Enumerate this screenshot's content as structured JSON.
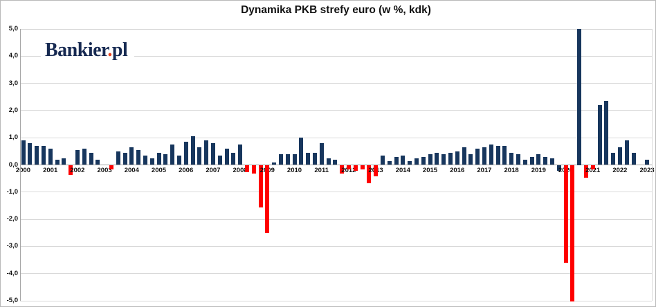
{
  "header": {
    "title": "Dynamika PKB strefy euro (w %, kdk)"
  },
  "logo": {
    "text_main": "Bankier",
    "text_dot": ".",
    "text_suffix": "pl",
    "color_navy": "#172a52",
    "color_red": "#e8431f"
  },
  "chart_data": {
    "type": "bar",
    "title": "Dynamika PKB strefy euro (w %, kdk)",
    "ylabel": "",
    "xlabel": "",
    "unit": "% quarter-on-quarter (kdk)",
    "ylim": [
      -5.0,
      5.0
    ],
    "ytick_step": 1.0,
    "ytick_labels": [
      "5,0",
      "4,0",
      "3,0",
      "2,0",
      "1,0",
      "0,0",
      "-1,0",
      "-2,0",
      "-3,0",
      "-4,0",
      "-5,0"
    ],
    "grid": "horizontal-only",
    "legend": "none",
    "bar_color_positive": "#17365d",
    "bar_color_negative": "#fe0000",
    "negative_navy_exceptions": [
      "2019Q4"
    ],
    "clipped_at_axis": [
      "2020Q2",
      "2020Q3"
    ],
    "note": "2020Q2 and 2020Q3 bars exceed the axis range and are clipped at -5,0 and +5,0; year tick labels sit under each Q1 bar",
    "series": [
      {
        "year": "2000",
        "values": [
          0.9,
          0.8,
          0.7,
          0.7
        ]
      },
      {
        "year": "2001",
        "values": [
          0.6,
          0.2,
          0.25,
          -0.35
        ]
      },
      {
        "year": "2002",
        "values": [
          0.55,
          0.6,
          0.45,
          0.2
        ]
      },
      {
        "year": "2003",
        "values": [
          0.0,
          -0.15,
          0.5,
          0.45
        ]
      },
      {
        "year": "2004",
        "values": [
          0.65,
          0.55,
          0.35,
          0.25
        ]
      },
      {
        "year": "2005",
        "values": [
          0.45,
          0.4,
          0.75,
          0.35
        ]
      },
      {
        "year": "2006",
        "values": [
          0.85,
          1.05,
          0.65,
          0.9
        ]
      },
      {
        "year": "2007",
        "values": [
          0.8,
          0.35,
          0.6,
          0.45
        ]
      },
      {
        "year": "2008",
        "values": [
          0.75,
          -0.25,
          -0.3,
          -1.55
        ]
      },
      {
        "year": "2009",
        "values": [
          -2.5,
          0.1,
          0.4,
          0.4
        ]
      },
      {
        "year": "2010",
        "values": [
          0.4,
          1.0,
          0.45,
          0.45
        ]
      },
      {
        "year": "2011",
        "values": [
          0.8,
          0.25,
          0.2,
          -0.3
        ]
      },
      {
        "year": "2012",
        "values": [
          -0.15,
          -0.2,
          -0.15,
          -0.65
        ]
      },
      {
        "year": "2013",
        "values": [
          -0.4,
          0.35,
          0.15,
          0.3
        ]
      },
      {
        "year": "2014",
        "values": [
          0.35,
          0.15,
          0.25,
          0.3
        ]
      },
      {
        "year": "2015",
        "values": [
          0.4,
          0.45,
          0.4,
          0.45
        ]
      },
      {
        "year": "2016",
        "values": [
          0.5,
          0.65,
          0.4,
          0.6
        ]
      },
      {
        "year": "2017",
        "values": [
          0.65,
          0.75,
          0.7,
          0.7
        ]
      },
      {
        "year": "2018",
        "values": [
          0.45,
          0.4,
          0.2,
          0.3
        ]
      },
      {
        "year": "2019",
        "values": [
          0.4,
          0.3,
          0.25,
          -0.2
        ]
      },
      {
        "year": "2020",
        "values": [
          -3.6,
          -5.0,
          5.0,
          -0.45
        ]
      },
      {
        "year": "2021",
        "values": [
          -0.15,
          2.2,
          2.35,
          0.45
        ]
      },
      {
        "year": "2022",
        "values": [
          0.65,
          0.9,
          0.45,
          0.0
        ]
      },
      {
        "year": "2023",
        "values": [
          0.2
        ]
      }
    ]
  }
}
